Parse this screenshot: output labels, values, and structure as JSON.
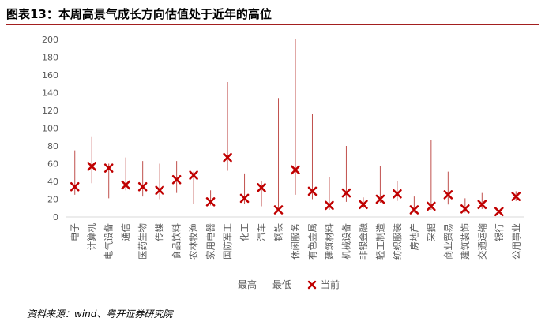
{
  "title": "图表13：本周高景气成长方向估值处于近年的高位",
  "source": "资料来源：wind、粤开证券研究院",
  "colors": {
    "range_line": "#c0504d",
    "marker": "#c00000",
    "title_rule": "#a31f1f",
    "axis": "#d9d9d9",
    "text": "#595959"
  },
  "chart_data": {
    "type": "scatter",
    "title": "",
    "xlabel": "",
    "ylabel": "",
    "ylim": [
      0,
      200
    ],
    "yticks": [
      0,
      20,
      40,
      60,
      80,
      100,
      120,
      140,
      160,
      180,
      200
    ],
    "grid": false,
    "legend_position": "bottom",
    "categories": [
      "电子",
      "计算机",
      "电气设备",
      "通信",
      "医药生物",
      "传媒",
      "食品饮料",
      "农林牧渔",
      "家用电器",
      "国防军工",
      "化工",
      "汽车",
      "钢铁",
      "休闲服务",
      "有色金属",
      "建筑材料",
      "机械设备",
      "非银金融",
      "轻工制造",
      "纺织服装",
      "房地产",
      "采掘",
      "商业贸易",
      "建筑装饰",
      "交通运输",
      "银行",
      "公用事业"
    ],
    "series": [
      {
        "name": "最高",
        "values": [
          75,
          90,
          60,
          67,
          63,
          60,
          63,
          51,
          30,
          152,
          49,
          40,
          134,
          200,
          116,
          45,
          80,
          22,
          57,
          40,
          23,
          87,
          51,
          21,
          27,
          8,
          29
        ]
      },
      {
        "name": "最低",
        "values": [
          25,
          38,
          21,
          30,
          23,
          20,
          27,
          15,
          13,
          52,
          15,
          12,
          6,
          25,
          20,
          8,
          17,
          10,
          16,
          18,
          5,
          8,
          14,
          5,
          9,
          4,
          18
        ]
      },
      {
        "name": "当前",
        "values": [
          34,
          57,
          55,
          36,
          34,
          30,
          42,
          47,
          17,
          67,
          21,
          33,
          8,
          53,
          29,
          13,
          27,
          14,
          20,
          26,
          8,
          12,
          25,
          9,
          14,
          6,
          23
        ]
      }
    ]
  }
}
